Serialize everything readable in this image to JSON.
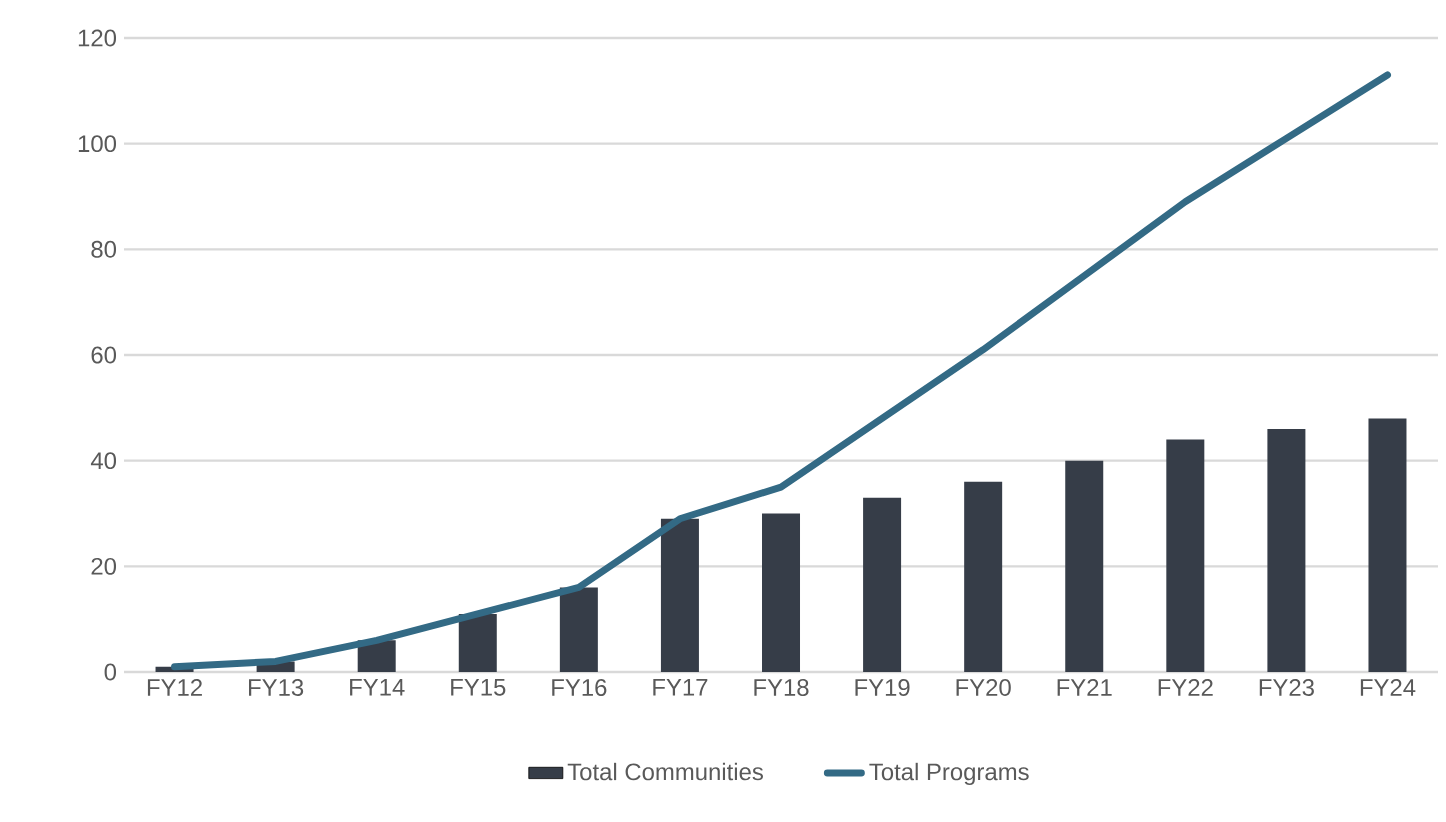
{
  "chart_data": {
    "type": "bar",
    "categories": [
      "FY12",
      "FY13",
      "FY14",
      "FY15",
      "FY16",
      "FY17",
      "FY18",
      "FY19",
      "FY20",
      "FY21",
      "FY22",
      "FY23",
      "FY24"
    ],
    "series": [
      {
        "name": "Total Communities",
        "color": "#363d48",
        "values": [
          1,
          2,
          6,
          11,
          16,
          29,
          30,
          33,
          36,
          40,
          44,
          46,
          48
        ]
      },
      {
        "name": "Total Programs",
        "type": "line",
        "color": "#336a85",
        "values": [
          1,
          2,
          6,
          11,
          16,
          29,
          35,
          48,
          61,
          75,
          89,
          101,
          113
        ]
      }
    ],
    "ylim": [
      0,
      120
    ],
    "yticks": [
      0,
      20,
      40,
      60,
      80,
      100,
      120
    ],
    "grid": "y",
    "legend": "bottom"
  }
}
